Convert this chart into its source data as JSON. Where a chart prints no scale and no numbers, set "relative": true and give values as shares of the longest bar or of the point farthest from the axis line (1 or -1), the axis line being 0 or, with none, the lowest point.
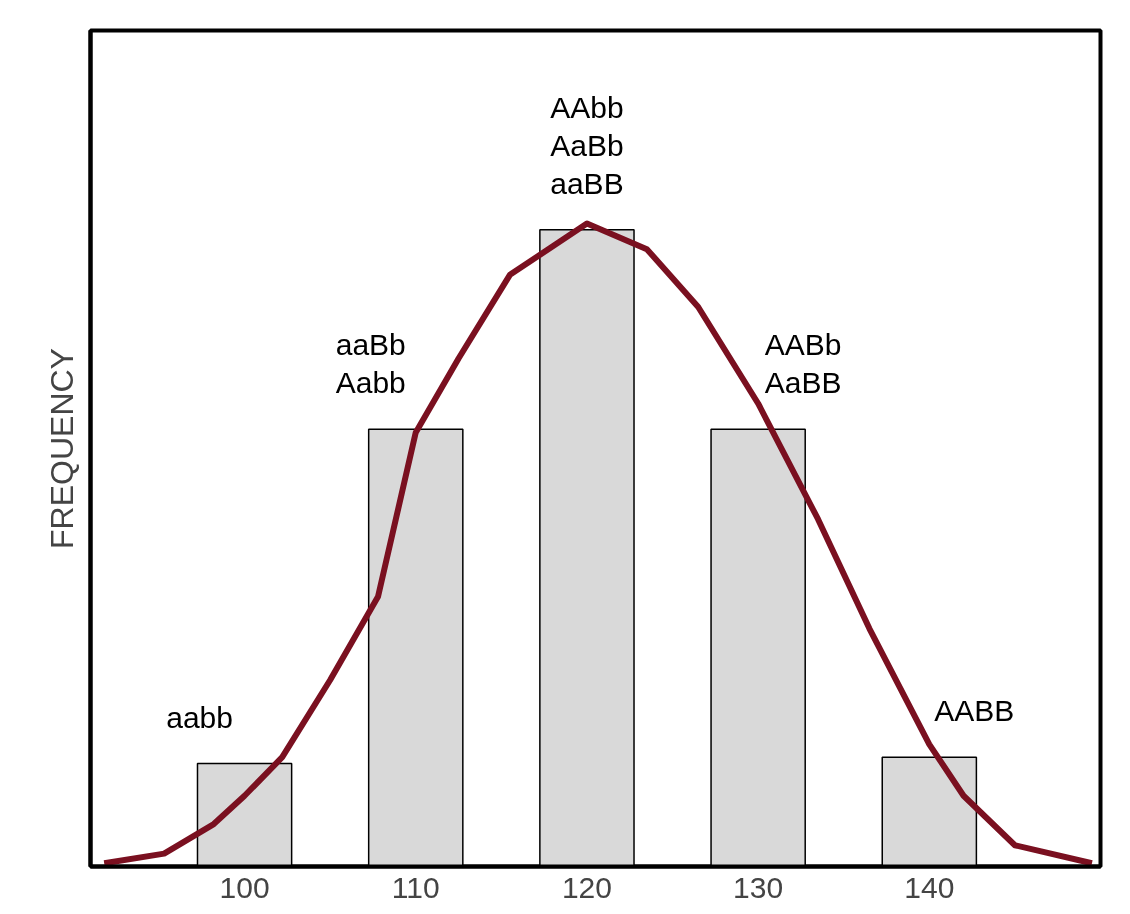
{
  "chart_data": {
    "type": "bar",
    "relative": true,
    "ylabel": "FREQUENCY",
    "x": [
      100,
      110,
      120,
      130,
      140
    ],
    "xlim": [
      91,
      150
    ],
    "xticks": [
      100,
      110,
      120,
      130,
      140
    ],
    "tick_labels": "x",
    "grid": false,
    "series": [
      {
        "color": "#d9d9d9",
        "values": [
          0.16,
          0.68,
          0.99,
          0.68,
          0.17
        ]
      },
      {
        "type": "line",
        "color": "#7a1020",
        "x": [
          91.8,
          95.3,
          98.2,
          100,
          102.2,
          105,
          107.8,
          110,
          112.5,
          115.5,
          120,
          123.5,
          126.5,
          130,
          133.5,
          136.5,
          140,
          142,
          145,
          149.5
        ],
        "values": [
          0.005,
          0.02,
          0.066,
          0.11,
          0.17,
          0.29,
          0.42,
          0.675,
          0.79,
          0.92,
          1.0,
          0.96,
          0.87,
          0.72,
          0.54,
          0.37,
          0.19,
          0.11,
          0.033,
          0.005
        ]
      }
    ],
    "annotations": [
      {
        "text": "aabb",
        "x": 100,
        "y": 0.16
      },
      {
        "text": "aaBb\nAabb",
        "x": 110,
        "y": 0.68
      },
      {
        "text": "AAbb\nAaBb\naaBB",
        "x": 120,
        "y": 0.99
      },
      {
        "text": "AABb\nAaBB",
        "x": 130,
        "y": 0.68
      },
      {
        "text": "AABB",
        "x": 140,
        "y": 0.17
      }
    ]
  }
}
